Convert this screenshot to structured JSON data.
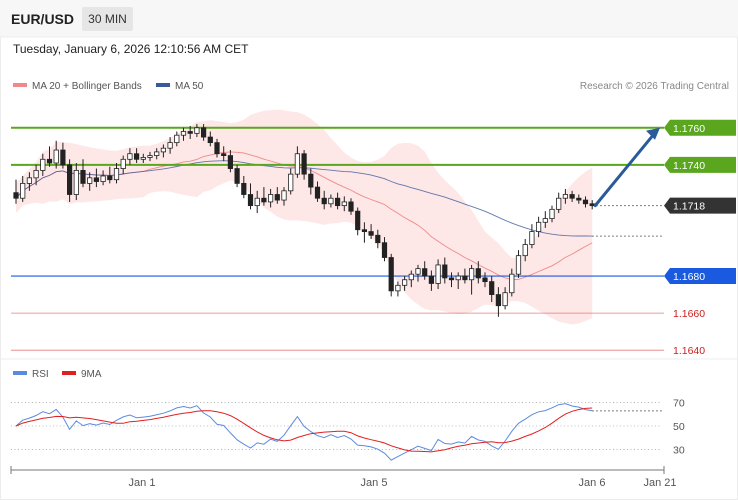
{
  "header": {
    "pair": "EUR/USD",
    "timeframe": "30 MIN"
  },
  "datetime": "Tuesday, January 6, 2026 12:10:56 AM CET",
  "legend": {
    "ma20": "MA 20 + Bollinger Bands",
    "ma50": "MA 50",
    "credit": "Research © 2026 Trading Central"
  },
  "rsi_legend": {
    "rsi": "RSI",
    "ma9": "9MA"
  },
  "colors": {
    "resistance": "#5aa61e",
    "support": "#1a5ae0",
    "weak": "#e05c5c",
    "current": "#333333",
    "bollinger": "#fde3e3",
    "ma20": "#f08a8a",
    "ma50": "#3b5a99",
    "arrow": "#2b5a9a",
    "rsi": "#5b8be0",
    "rsi_ma": "#e02020"
  },
  "chart_data": [
    {
      "type": "line",
      "title": "EUR/USD",
      "ylim": [
        1.1632,
        1.1775
      ],
      "x_tick_labels": [
        "Jan 1",
        "Jan 5",
        "Jan 6",
        "Jan 21"
      ],
      "price_levels": [
        {
          "label": "1.1760",
          "value": 1.176,
          "kind": "resistance"
        },
        {
          "label": "1.1740",
          "value": 1.174,
          "kind": "resistance"
        },
        {
          "label": "1.1718",
          "value": 1.1718,
          "kind": "current"
        },
        {
          "label": "1.1680",
          "value": 1.168,
          "kind": "support"
        },
        {
          "label": "1.1660",
          "value": 1.166,
          "kind": "weak"
        },
        {
          "label": "1.1640",
          "value": 1.164,
          "kind": "weak"
        }
      ],
      "projection": {
        "from": 1.1718,
        "to": 1.176
      },
      "candles": [
        [
          1.1725,
          1.1732,
          1.1719,
          1.1722
        ],
        [
          1.1722,
          1.1734,
          1.172,
          1.173
        ],
        [
          1.173,
          1.1736,
          1.1726,
          1.1733
        ],
        [
          1.1733,
          1.174,
          1.1729,
          1.1737
        ],
        [
          1.1737,
          1.1746,
          1.1734,
          1.1743
        ],
        [
          1.1743,
          1.175,
          1.1739,
          1.1741
        ],
        [
          1.1741,
          1.1753,
          1.1738,
          1.1748
        ],
        [
          1.1748,
          1.1752,
          1.1738,
          1.174
        ],
        [
          1.174,
          1.1743,
          1.172,
          1.1724
        ],
        [
          1.1724,
          1.1741,
          1.1721,
          1.1737
        ],
        [
          1.1737,
          1.1743,
          1.1728,
          1.173
        ],
        [
          1.173,
          1.1736,
          1.1726,
          1.1733
        ],
        [
          1.1733,
          1.1738,
          1.1728,
          1.1731
        ],
        [
          1.1731,
          1.1737,
          1.1729,
          1.1734
        ],
        [
          1.1734,
          1.1739,
          1.173,
          1.1732
        ],
        [
          1.1732,
          1.1741,
          1.173,
          1.1738
        ],
        [
          1.1738,
          1.1745,
          1.1735,
          1.1743
        ],
        [
          1.1743,
          1.1749,
          1.174,
          1.1746
        ],
        [
          1.1746,
          1.1749,
          1.1741,
          1.1743
        ],
        [
          1.1743,
          1.1746,
          1.1741,
          1.1744
        ],
        [
          1.1744,
          1.1747,
          1.1742,
          1.1745
        ],
        [
          1.1745,
          1.1749,
          1.1743,
          1.1747
        ],
        [
          1.1747,
          1.1751,
          1.1744,
          1.1749
        ],
        [
          1.1749,
          1.1755,
          1.1746,
          1.1752
        ],
        [
          1.1752,
          1.1758,
          1.175,
          1.1756
        ],
        [
          1.1756,
          1.176,
          1.1753,
          1.1758
        ],
        [
          1.1758,
          1.1761,
          1.1754,
          1.1757
        ],
        [
          1.1757,
          1.1762,
          1.1755,
          1.176
        ],
        [
          1.176,
          1.1762,
          1.1753,
          1.1755
        ],
        [
          1.1755,
          1.1758,
          1.175,
          1.1752
        ],
        [
          1.1752,
          1.1754,
          1.1744,
          1.1746
        ],
        [
          1.1746,
          1.175,
          1.1742,
          1.1745
        ],
        [
          1.1745,
          1.1748,
          1.1736,
          1.1738
        ],
        [
          1.1738,
          1.174,
          1.1728,
          1.173
        ],
        [
          1.173,
          1.1734,
          1.1722,
          1.1724
        ],
        [
          1.1724,
          1.173,
          1.1716,
          1.1718
        ],
        [
          1.1718,
          1.1726,
          1.1714,
          1.1722
        ],
        [
          1.1722,
          1.1728,
          1.1718,
          1.172
        ],
        [
          1.172,
          1.1727,
          1.1717,
          1.1724
        ],
        [
          1.1724,
          1.1728,
          1.1719,
          1.1721
        ],
        [
          1.1721,
          1.1728,
          1.1718,
          1.1726
        ],
        [
          1.1726,
          1.1738,
          1.1724,
          1.1735
        ],
        [
          1.1735,
          1.175,
          1.1733,
          1.1746
        ],
        [
          1.1746,
          1.1748,
          1.1732,
          1.1735
        ],
        [
          1.1735,
          1.1738,
          1.1724,
          1.1728
        ],
        [
          1.1728,
          1.1731,
          1.172,
          1.1722
        ],
        [
          1.1722,
          1.1726,
          1.1716,
          1.1719
        ],
        [
          1.1719,
          1.1724,
          1.1717,
          1.1722
        ],
        [
          1.1722,
          1.1725,
          1.1716,
          1.1718
        ],
        [
          1.1718,
          1.1723,
          1.1715,
          1.172
        ],
        [
          1.172,
          1.1722,
          1.1713,
          1.1715
        ],
        [
          1.1715,
          1.1717,
          1.1702,
          1.1705
        ],
        [
          1.1705,
          1.1709,
          1.1698,
          1.1704
        ],
        [
          1.1704,
          1.1708,
          1.17,
          1.1702
        ],
        [
          1.1702,
          1.1705,
          1.1695,
          1.1698
        ],
        [
          1.1698,
          1.1701,
          1.1688,
          1.169
        ],
        [
          1.169,
          1.1692,
          1.1669,
          1.1672
        ],
        [
          1.1672,
          1.1677,
          1.1669,
          1.1675
        ],
        [
          1.1675,
          1.168,
          1.1672,
          1.1678
        ],
        [
          1.1678,
          1.1683,
          1.1674,
          1.1681
        ],
        [
          1.1681,
          1.1686,
          1.1677,
          1.1684
        ],
        [
          1.1684,
          1.1688,
          1.1678,
          1.168
        ],
        [
          1.168,
          1.1683,
          1.1672,
          1.1676
        ],
        [
          1.1676,
          1.1689,
          1.1673,
          1.1686
        ],
        [
          1.1686,
          1.169,
          1.1676,
          1.1679
        ],
        [
          1.1679,
          1.1682,
          1.1674,
          1.1678
        ],
        [
          1.1678,
          1.1682,
          1.1673,
          1.168
        ],
        [
          1.168,
          1.1684,
          1.1676,
          1.1678
        ],
        [
          1.1678,
          1.1686,
          1.167,
          1.1684
        ],
        [
          1.1684,
          1.1688,
          1.1676,
          1.1679
        ],
        [
          1.1679,
          1.1682,
          1.1674,
          1.1677
        ],
        [
          1.1677,
          1.168,
          1.1666,
          1.167
        ],
        [
          1.167,
          1.1674,
          1.1658,
          1.1664
        ],
        [
          1.1664,
          1.1674,
          1.1662,
          1.1671
        ],
        [
          1.1671,
          1.1684,
          1.1669,
          1.1681
        ],
        [
          1.1681,
          1.1694,
          1.1679,
          1.1691
        ],
        [
          1.1691,
          1.17,
          1.1688,
          1.1697
        ],
        [
          1.1697,
          1.1708,
          1.1695,
          1.1704
        ],
        [
          1.1704,
          1.1712,
          1.1701,
          1.1709
        ],
        [
          1.1709,
          1.1715,
          1.1706,
          1.1711
        ],
        [
          1.1711,
          1.1718,
          1.1709,
          1.1716
        ],
        [
          1.1716,
          1.1725,
          1.1714,
          1.1722
        ],
        [
          1.1722,
          1.1727,
          1.1719,
          1.1724
        ],
        [
          1.1724,
          1.1726,
          1.172,
          1.1722
        ],
        [
          1.1722,
          1.1724,
          1.1719,
          1.1721
        ],
        [
          1.1721,
          1.1723,
          1.1717,
          1.1719
        ],
        [
          1.1719,
          1.1721,
          1.1716,
          1.1718
        ]
      ]
    },
    {
      "type": "line",
      "title": "RSI",
      "series_names": [
        "RSI",
        "9MA"
      ],
      "yticks": [
        30,
        50,
        70
      ],
      "ylim": [
        15,
        85
      ]
    }
  ]
}
